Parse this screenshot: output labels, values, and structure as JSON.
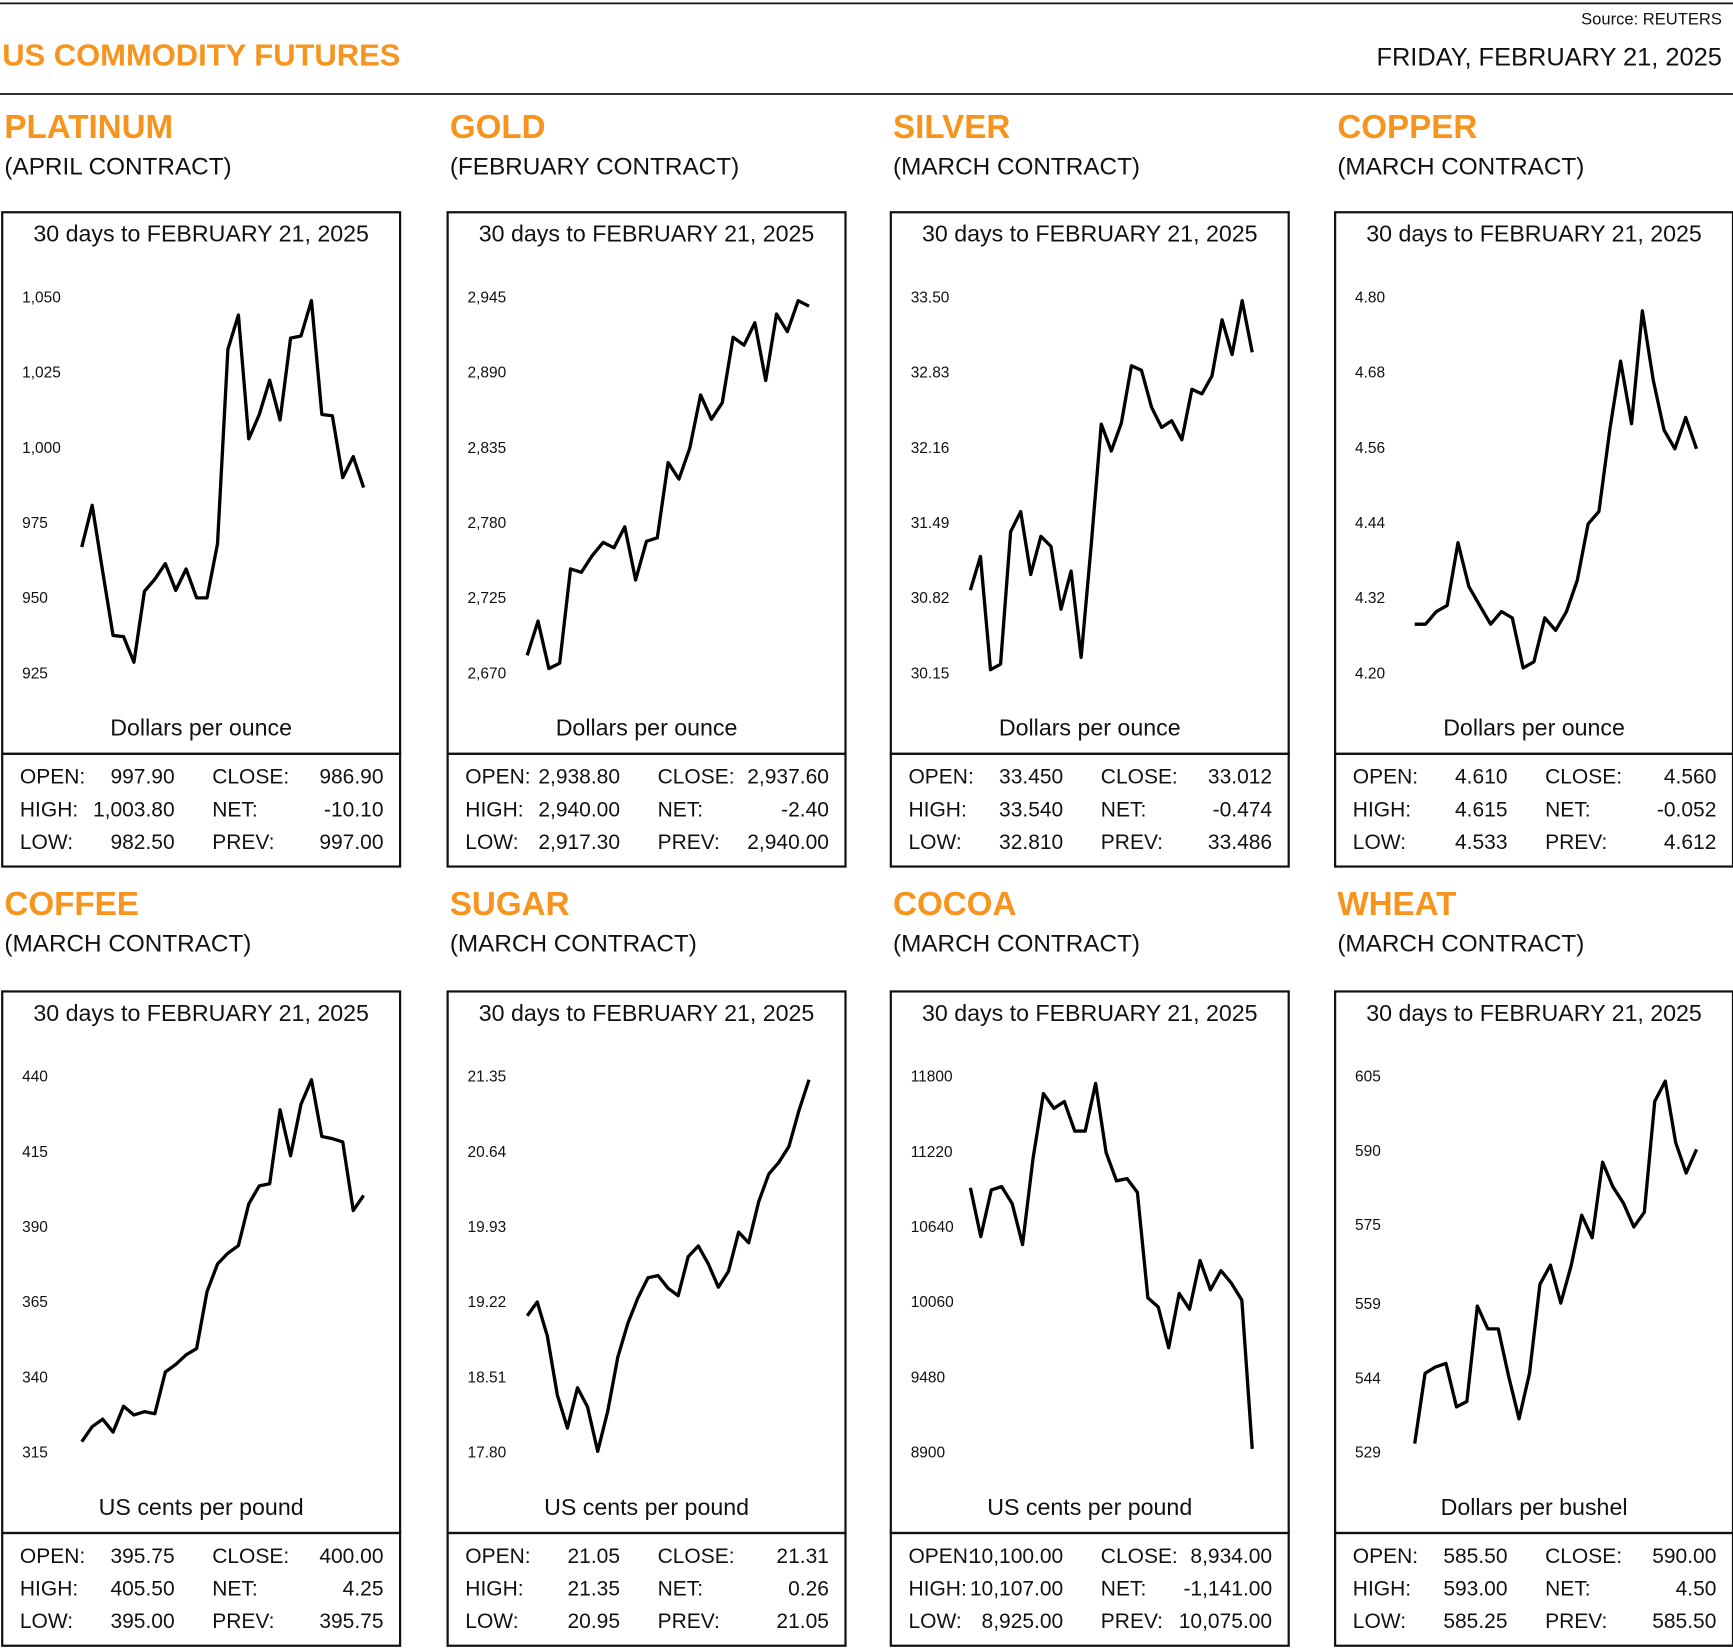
{
  "header": {
    "title": "US COMMODITY FUTURES",
    "date": "FRIDAY, FEBRUARY 21, 2025",
    "source": "Source: REUTERS"
  },
  "chart_data": [
    {
      "type": "line",
      "title": "PLATINUM",
      "subtitle": "(APRIL CONTRACT)",
      "caption": "30 days to FEBRUARY 21, 2025",
      "y_label": "Dollars per ounce",
      "color": "#000000",
      "ylim": [
        925,
        1050
      ],
      "yticks": [
        925,
        950,
        975,
        {
          "value": 1000,
          "label": "1,000"
        },
        {
          "value": 1025,
          "label": "1,025"
        },
        {
          "value": 1050,
          "label": "1,050"
        }
      ],
      "values": [
        967.3,
        981.2,
        959.2,
        937.9,
        937.5,
        929.0,
        952.6,
        956.6,
        961.8,
        952.9,
        960.0,
        950.4,
        950.4,
        968.4,
        1033.1,
        1044.5,
        1003.3,
        1011.4,
        1022.8,
        1009.6,
        1036.8,
        1037.5,
        1049.3,
        1011.4,
        1011.0,
        990.4,
        997.4,
        987.1
      ],
      "stats": [
        [
          "OPEN:",
          "997.90",
          "CLOSE:",
          "986.90"
        ],
        [
          "HIGH:",
          "1,003.80",
          "NET:",
          "-10.10"
        ],
        [
          "LOW:",
          "982.50",
          "PREV:",
          "997.00"
        ]
      ]
    },
    {
      "type": "line",
      "title": "GOLD",
      "subtitle": "(FEBRUARY CONTRACT)",
      "caption": "30 days to FEBRUARY 21, 2025",
      "y_label": "Dollars per ounce",
      "color": "#000000",
      "ylim": [
        2670,
        2945
      ],
      "yticks": [
        {
          "value": 2670,
          "label": "2,670"
        },
        {
          "value": 2725,
          "label": "2,725"
        },
        {
          "value": 2780,
          "label": "2,780"
        },
        {
          "value": 2835,
          "label": "2,835"
        },
        {
          "value": 2890,
          "label": "2,890"
        },
        {
          "value": 2945,
          "label": "2,945"
        }
      ],
      "values": [
        2683.8,
        2708.9,
        2674.1,
        2678.1,
        2747.1,
        2744.6,
        2756.8,
        2766.5,
        2762.5,
        2777.9,
        2739.0,
        2767.3,
        2769.8,
        2824.9,
        2812.8,
        2835.5,
        2874.4,
        2856.6,
        2868.7,
        2916.6,
        2910.9,
        2927.2,
        2885.0,
        2933.6,
        2920.7,
        2943.4,
        2939.3
      ],
      "stats": [
        [
          "OPEN:",
          "2,938.80",
          "CLOSE:",
          "2,937.60"
        ],
        [
          "HIGH:",
          "2,940.00",
          "NET:",
          "-2.40"
        ],
        [
          "LOW:",
          "2,917.30",
          "PREV:",
          "2,940.00"
        ]
      ]
    },
    {
      "type": "line",
      "title": "SILVER",
      "subtitle": "(MARCH CONTRACT)",
      "caption": "30 days to FEBRUARY 21, 2025",
      "y_label": "Dollars per ounce",
      "color": "#000000",
      "ylim": [
        30.15,
        33.5
      ],
      "yticks": [
        30.15,
        30.82,
        31.49,
        32.16,
        32.83,
        {
          "value": 33.5,
          "label": "33.50"
        }
      ],
      "values": [
        30.9,
        31.2,
        30.19,
        30.24,
        31.42,
        31.6,
        31.04,
        31.38,
        31.29,
        30.73,
        31.07,
        30.3,
        31.3,
        32.38,
        32.14,
        32.39,
        32.9,
        32.86,
        32.53,
        32.35,
        32.41,
        32.24,
        32.69,
        32.65,
        32.81,
        33.31,
        33.0,
        33.48,
        33.02
      ],
      "stats": [
        [
          "OPEN:",
          "33.450",
          "CLOSE:",
          "33.012"
        ],
        [
          "HIGH:",
          "33.540",
          "NET:",
          "-0.474"
        ],
        [
          "LOW:",
          "32.810",
          "PREV:",
          "33.486"
        ]
      ]
    },
    {
      "type": "line",
      "title": "COPPER",
      "subtitle": "(MARCH CONTRACT)",
      "caption": "30 days to FEBRUARY 21, 2025",
      "y_label": "Dollars per ounce",
      "color": "#000000",
      "ylim": [
        4.2,
        4.8
      ],
      "yticks": [
        {
          "value": 4.2,
          "label": "4.20"
        },
        4.32,
        4.44,
        4.56,
        4.68,
        {
          "value": 4.8,
          "label": "4.80"
        }
      ],
      "values": [
        4.28,
        4.28,
        4.3,
        4.31,
        4.41,
        4.34,
        4.31,
        4.28,
        4.3,
        4.29,
        4.21,
        4.22,
        4.29,
        4.27,
        4.3,
        4.35,
        4.44,
        4.46,
        4.59,
        4.7,
        4.6,
        4.78,
        4.67,
        4.59,
        4.56,
        4.61,
        4.56
      ],
      "stats": [
        [
          "OPEN:",
          "4.610",
          "CLOSE:",
          "4.560"
        ],
        [
          "HIGH:",
          "4.615",
          "NET:",
          "-0.052"
        ],
        [
          "LOW:",
          "4.533",
          "PREV:",
          "4.612"
        ]
      ]
    },
    {
      "type": "line",
      "title": "COFFEE",
      "subtitle": "(MARCH CONTRACT)",
      "caption": "30 days to FEBRUARY 21, 2025",
      "y_label": "US cents per pound",
      "color": "#000000",
      "ylim": [
        315,
        440
      ],
      "yticks": [
        315,
        340,
        365,
        390,
        415,
        440
      ],
      "values": [
        318.9,
        323.9,
        326.4,
        322.1,
        330.7,
        327.8,
        328.9,
        328.2,
        342.1,
        344.6,
        347.8,
        349.9,
        368.8,
        378.0,
        381.6,
        384.1,
        398.0,
        404.0,
        404.7,
        429.3,
        414.0,
        431.1,
        439.3,
        420.4,
        419.7,
        418.6,
        395.8,
        400.8
      ],
      "stats": [
        [
          "OPEN:",
          "395.75",
          "CLOSE:",
          "400.00"
        ],
        [
          "HIGH:",
          "405.50",
          "NET:",
          "4.25"
        ],
        [
          "LOW:",
          "395.00",
          "PREV:",
          "395.75"
        ]
      ]
    },
    {
      "type": "line",
      "title": "SUGAR",
      "subtitle": "(MARCH CONTRACT)",
      "caption": "30 days to FEBRUARY 21, 2025",
      "y_label": "US cents per pound",
      "color": "#000000",
      "ylim": [
        17.8,
        21.35
      ],
      "yticks": [
        {
          "value": 17.8,
          "label": "17.80"
        },
        18.51,
        19.22,
        19.93,
        20.64,
        21.35
      ],
      "values": [
        19.1,
        19.23,
        18.91,
        18.35,
        18.04,
        18.42,
        18.24,
        17.82,
        18.2,
        18.71,
        19.03,
        19.27,
        19.46,
        19.48,
        19.36,
        19.29,
        19.66,
        19.76,
        19.59,
        19.37,
        19.52,
        19.89,
        19.79,
        20.18,
        20.44,
        20.55,
        20.7,
        21.04,
        21.33
      ],
      "stats": [
        [
          "OPEN:",
          "21.05",
          "CLOSE:",
          "21.31"
        ],
        [
          "HIGH:",
          "21.35",
          "NET:",
          "0.26"
        ],
        [
          "LOW:",
          "20.95",
          "PREV:",
          "21.05"
        ]
      ]
    },
    {
      "type": "line",
      "title": "COCOA",
      "subtitle": "(MARCH CONTRACT)",
      "caption": "30 days to FEBRUARY 21, 2025",
      "y_label": "US cents per pound",
      "color": "#000000",
      "ylim": [
        8900,
        11800
      ],
      "yticks": [
        8900,
        9480,
        10060,
        10640,
        11220,
        11800
      ],
      "values": [
        10950,
        10573,
        10933,
        10959,
        10828,
        10512,
        11178,
        11677,
        11563,
        11616,
        11388,
        11388,
        11756,
        11222,
        11003,
        11020,
        10915,
        10100,
        10030,
        9715,
        10135,
        10013,
        10389,
        10162,
        10311,
        10214,
        10083,
        8935
      ],
      "stats": [
        [
          "OPEN:",
          "10,100.00",
          "CLOSE:",
          "8,934.00"
        ],
        [
          "HIGH:",
          "10,107.00",
          "NET:",
          "-1,141.00"
        ],
        [
          "LOW:",
          "8,925.00",
          "PREV:",
          "10,075.00"
        ]
      ]
    },
    {
      "type": "line",
      "title": "WHEAT",
      "subtitle": "(MARCH CONTRACT)",
      "caption": "30 days to FEBRUARY 21, 2025",
      "y_label": "Dollars per bushel",
      "color": "#000000",
      "ylim": [
        529,
        605
      ],
      "yticks": [
        529,
        544,
        559,
        575,
        590,
        605
      ],
      "values": [
        531.0,
        545.2,
        546.5,
        547.2,
        538.4,
        539.5,
        558.8,
        554.2,
        554.2,
        544.6,
        536.0,
        545.2,
        563.2,
        567.1,
        559.4,
        567.1,
        577.2,
        572.6,
        587.9,
        582.9,
        579.6,
        574.8,
        577.8,
        600.2,
        604.3,
        591.9,
        585.7,
        590.5
      ],
      "stats": [
        [
          "OPEN:",
          "585.50",
          "CLOSE:",
          "590.00"
        ],
        [
          "HIGH:",
          "593.00",
          "NET:",
          "4.50"
        ],
        [
          "LOW:",
          "585.25",
          "PREV:",
          "585.50"
        ]
      ]
    }
  ]
}
